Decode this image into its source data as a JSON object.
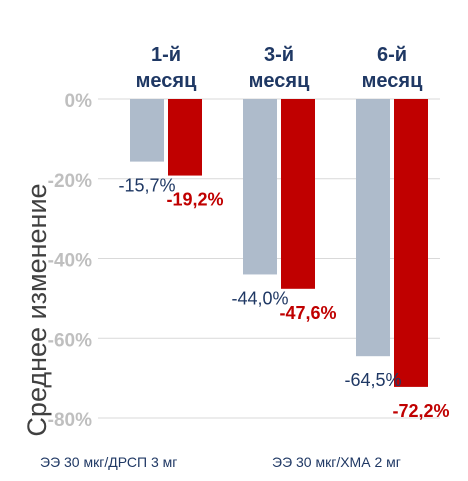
{
  "chart_data": {
    "type": "bar",
    "categories": [
      "1-й\nмесяц",
      "3-й\nмесяц",
      "6-й\nмесяц"
    ],
    "series": [
      {
        "name": "ЭЭ 30 мкг/ДРСП 3 мг",
        "color": "#aebbcb",
        "label_color": "#1f3864",
        "values": [
          -15.7,
          -44.0,
          -64.5
        ],
        "labels": [
          "-15,7%",
          "-44,0%",
          "-64,5%"
        ]
      },
      {
        "name": "ЭЭ 30 мкг/ХМА 2 мг",
        "color": "#c00000",
        "label_color": "#c00000",
        "values": [
          -19.2,
          -47.6,
          -72.2
        ],
        "labels": [
          "-19,2%",
          "-47,6%",
          "-72,2%"
        ]
      }
    ],
    "ylabel": "Среднее изменение",
    "ylim": [
      -80,
      0
    ],
    "yticks": [
      0,
      -20,
      -40,
      -60,
      -80
    ],
    "ytick_labels": [
      "0%",
      "-20%",
      "-40%",
      "-60%",
      "-80%"
    ],
    "grid": true,
    "legend": "bottom"
  }
}
